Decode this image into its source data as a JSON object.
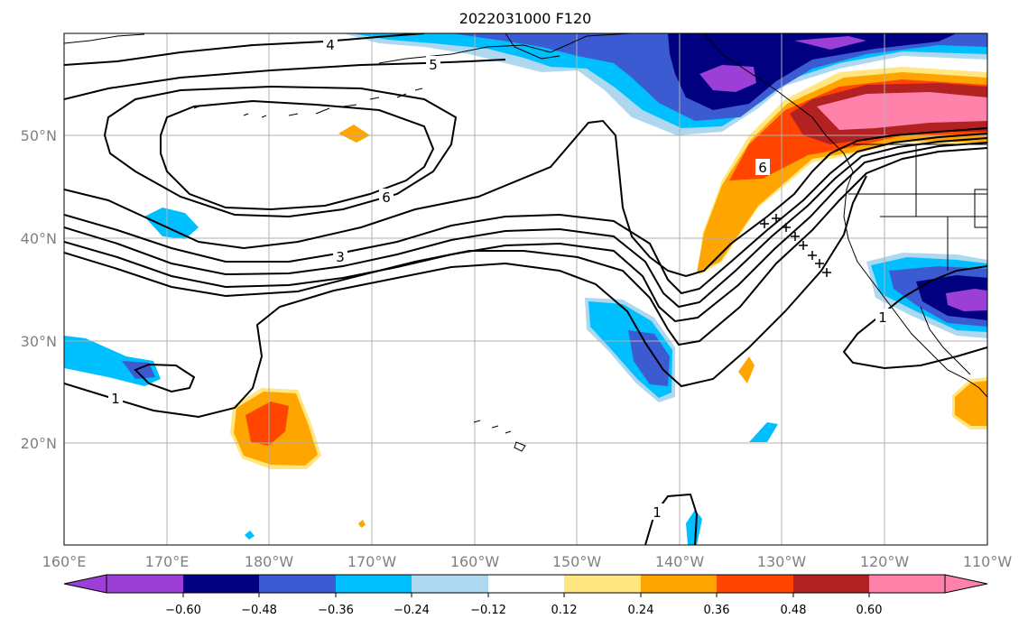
{
  "title": "2022031000 F120",
  "x_ticks": [
    "160°E",
    "170°E",
    "180°W",
    "170°W",
    "160°W",
    "150°W",
    "140°W",
    "130°W",
    "120°W",
    "110°W"
  ],
  "y_ticks": [
    "50°N",
    "40°N",
    "30°N",
    "20°N"
  ],
  "colorbar": {
    "labels": [
      "−0.60",
      "−0.48",
      "−0.36",
      "−0.24",
      "−0.12",
      "0.12",
      "0.24",
      "0.36",
      "0.48",
      "0.60"
    ],
    "colors": [
      "#9b3fd6",
      "#000080",
      "#3c5ad2",
      "#00bfff",
      "#add8f0",
      "#ffffff",
      "#ffe680",
      "#ffa500",
      "#ff4500",
      "#b22222",
      "#ff82ab"
    ]
  },
  "contour_labels": [
    "4",
    "5",
    "6",
    "6",
    "3",
    "1",
    "1",
    "1"
  ],
  "colors": {
    "contour": "#000000",
    "grid": "#b0b0b0",
    "coast": "#000000"
  }
}
